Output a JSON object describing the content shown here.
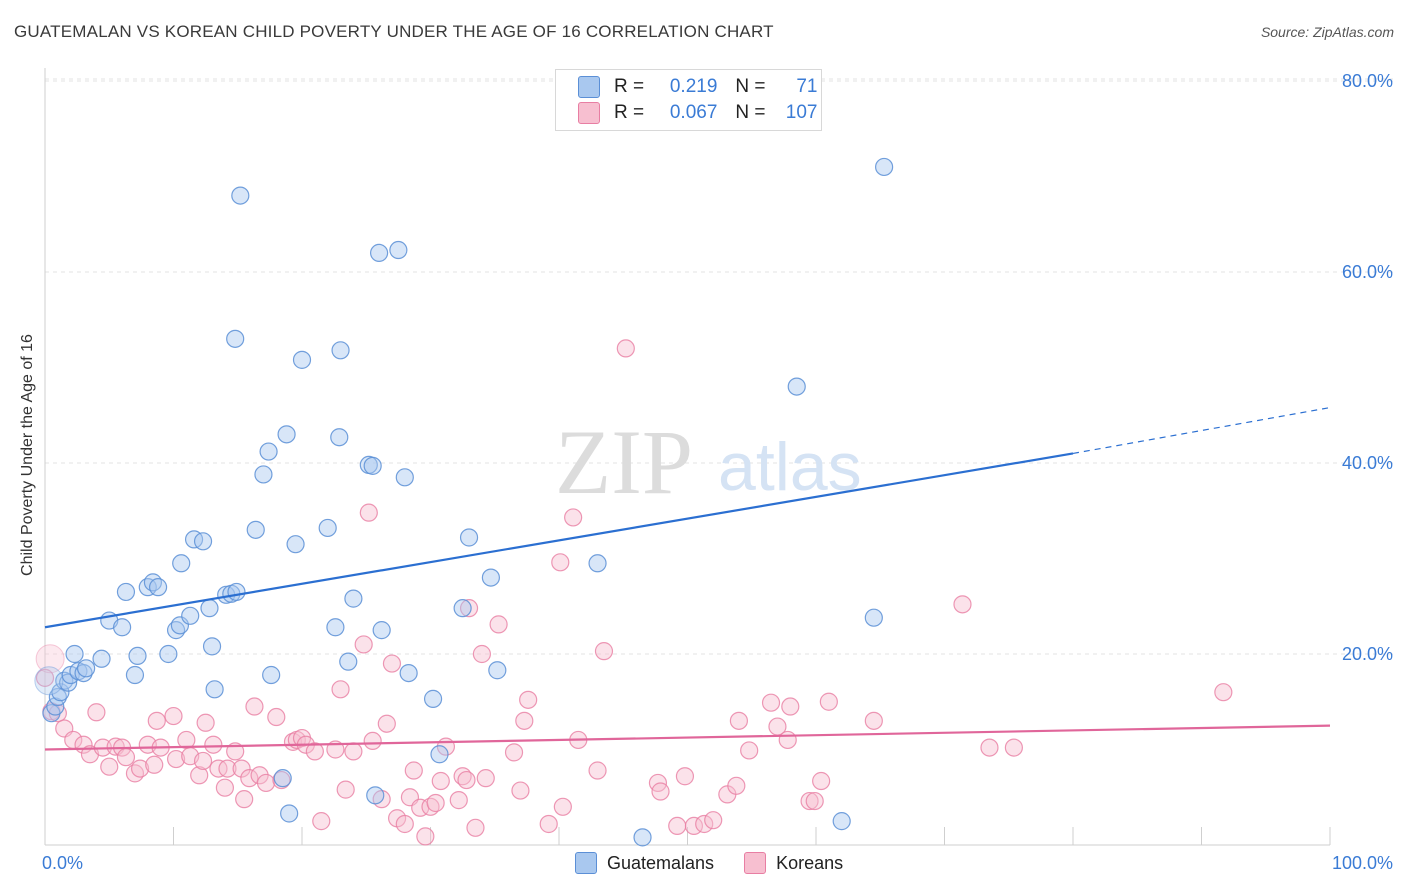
{
  "title": "GUATEMALAN VS KOREAN CHILD POVERTY UNDER THE AGE OF 16 CORRELATION CHART",
  "source": "Source: ZipAtlas.com",
  "watermark": {
    "zip": "ZIP",
    "atlas": "atlas"
  },
  "legend": {
    "r_label": "R =",
    "n_label": "N =",
    "series": [
      {
        "name": "Guatemalans",
        "r": "0.219",
        "n": "71",
        "fill": "#a9c8ef",
        "stroke": "#5b8fd6"
      },
      {
        "name": "Koreans",
        "r": "0.067",
        "n": "107",
        "fill": "#f7bfd0",
        "stroke": "#e87ea3"
      }
    ]
  },
  "chart_data": {
    "type": "scatter",
    "title": "GUATEMALAN VS KOREAN CHILD POVERTY UNDER THE AGE OF 16 CORRELATION CHART",
    "xlabel": "",
    "ylabel": "Child Poverty Under the Age of 16",
    "xlim": [
      0,
      100
    ],
    "ylim": [
      0,
      80
    ],
    "x_tick_labels": [
      "0.0%",
      "100.0%"
    ],
    "y_ticks": [
      20,
      40,
      60,
      80
    ],
    "y_tick_labels": [
      "20.0%",
      "40.0%",
      "60.0%",
      "80.0%"
    ],
    "grid": true,
    "series": [
      {
        "name": "Guatemalans",
        "color": "#5b8fd6",
        "fill": "#a9c8ef",
        "trend": {
          "x0": 0,
          "y0": 22.8,
          "x1": 80,
          "y1": 41.0,
          "dash_to_x": 100,
          "dash_to_y": 45.8,
          "color": "#2b6fd1"
        },
        "points": [
          [
            0.5,
            13.8
          ],
          [
            0.8,
            14.5
          ],
          [
            1.0,
            15.5
          ],
          [
            1.2,
            16.0
          ],
          [
            1.5,
            17.2
          ],
          [
            1.8,
            17.0
          ],
          [
            2.0,
            17.8
          ],
          [
            2.3,
            20.0
          ],
          [
            2.6,
            18.2
          ],
          [
            3.0,
            18.0
          ],
          [
            3.2,
            18.5
          ],
          [
            4.4,
            19.5
          ],
          [
            5.0,
            23.5
          ],
          [
            6.0,
            22.8
          ],
          [
            6.3,
            26.5
          ],
          [
            7.0,
            17.8
          ],
          [
            7.2,
            19.8
          ],
          [
            8.0,
            27.0
          ],
          [
            8.4,
            27.5
          ],
          [
            8.8,
            27.0
          ],
          [
            9.6,
            20.0
          ],
          [
            10.2,
            22.5
          ],
          [
            10.5,
            23.0
          ],
          [
            10.6,
            29.5
          ],
          [
            11.3,
            24.0
          ],
          [
            11.6,
            32.0
          ],
          [
            12.3,
            31.8
          ],
          [
            12.8,
            24.8
          ],
          [
            13.0,
            20.8
          ],
          [
            13.2,
            16.3
          ],
          [
            14.1,
            26.2
          ],
          [
            14.5,
            26.3
          ],
          [
            14.9,
            26.5
          ],
          [
            14.8,
            53.0
          ],
          [
            15.2,
            68.0
          ],
          [
            16.4,
            33.0
          ],
          [
            17.0,
            38.8
          ],
          [
            17.4,
            41.2
          ],
          [
            17.6,
            17.8
          ],
          [
            18.5,
            7.0
          ],
          [
            18.8,
            43.0
          ],
          [
            19.0,
            3.3
          ],
          [
            19.5,
            31.5
          ],
          [
            20.0,
            50.8
          ],
          [
            22.0,
            33.2
          ],
          [
            22.6,
            22.8
          ],
          [
            22.9,
            42.7
          ],
          [
            23.0,
            51.8
          ],
          [
            23.6,
            19.2
          ],
          [
            24.0,
            25.8
          ],
          [
            25.2,
            39.8
          ],
          [
            25.5,
            39.7
          ],
          [
            25.7,
            5.2
          ],
          [
            26.0,
            62.0
          ],
          [
            26.2,
            22.5
          ],
          [
            27.5,
            62.3
          ],
          [
            28.0,
            38.5
          ],
          [
            28.3,
            18.0
          ],
          [
            30.2,
            15.3
          ],
          [
            30.7,
            9.5
          ],
          [
            32.5,
            24.8
          ],
          [
            33.0,
            32.2
          ],
          [
            34.7,
            28.0
          ],
          [
            35.2,
            18.3
          ],
          [
            43.0,
            29.5
          ],
          [
            46.5,
            0.8
          ],
          [
            58.5,
            48.0
          ],
          [
            62.0,
            2.5
          ],
          [
            64.5,
            23.8
          ],
          [
            65.3,
            71.0
          ]
        ]
      },
      {
        "name": "Koreans",
        "color": "#e87ea3",
        "fill": "#f7bfd0",
        "trend": {
          "x0": 0,
          "y0": 10.0,
          "x1": 100,
          "y1": 12.5,
          "color": "#e0669a"
        },
        "points": [
          [
            0.0,
            17.5
          ],
          [
            0.5,
            14.0
          ],
          [
            1.0,
            13.8
          ],
          [
            1.5,
            12.2
          ],
          [
            2.2,
            11.0
          ],
          [
            3.0,
            10.5
          ],
          [
            3.5,
            9.5
          ],
          [
            4.0,
            13.9
          ],
          [
            4.5,
            10.2
          ],
          [
            5.0,
            8.2
          ],
          [
            5.5,
            10.3
          ],
          [
            6.0,
            10.2
          ],
          [
            6.3,
            9.2
          ],
          [
            7.0,
            7.5
          ],
          [
            7.4,
            8.0
          ],
          [
            8.0,
            10.5
          ],
          [
            8.5,
            8.4
          ],
          [
            8.7,
            13.0
          ],
          [
            9.0,
            10.2
          ],
          [
            10.0,
            13.5
          ],
          [
            10.2,
            9.0
          ],
          [
            11.0,
            11.0
          ],
          [
            11.3,
            9.3
          ],
          [
            12.0,
            7.3
          ],
          [
            12.3,
            8.8
          ],
          [
            12.5,
            12.8
          ],
          [
            13.1,
            10.5
          ],
          [
            13.5,
            8.0
          ],
          [
            14.0,
            6.0
          ],
          [
            14.2,
            8.0
          ],
          [
            14.8,
            9.8
          ],
          [
            15.3,
            8.0
          ],
          [
            15.5,
            4.8
          ],
          [
            15.9,
            7.0
          ],
          [
            16.3,
            14.5
          ],
          [
            16.7,
            7.3
          ],
          [
            17.2,
            6.5
          ],
          [
            18.0,
            13.4
          ],
          [
            18.4,
            6.8
          ],
          [
            19.3,
            10.8
          ],
          [
            19.6,
            11.0
          ],
          [
            20.0,
            11.2
          ],
          [
            20.3,
            10.5
          ],
          [
            21.0,
            9.8
          ],
          [
            21.5,
            2.5
          ],
          [
            22.6,
            10.0
          ],
          [
            23.0,
            16.3
          ],
          [
            23.4,
            5.8
          ],
          [
            24.0,
            9.8
          ],
          [
            24.8,
            21.0
          ],
          [
            25.2,
            34.8
          ],
          [
            25.5,
            10.9
          ],
          [
            26.2,
            4.8
          ],
          [
            26.6,
            12.7
          ],
          [
            27.0,
            19.0
          ],
          [
            27.4,
            2.8
          ],
          [
            28.0,
            2.2
          ],
          [
            28.4,
            5.0
          ],
          [
            28.7,
            7.8
          ],
          [
            29.2,
            3.9
          ],
          [
            29.6,
            0.9
          ],
          [
            30.0,
            4.0
          ],
          [
            30.4,
            4.4
          ],
          [
            30.8,
            6.7
          ],
          [
            31.2,
            10.3
          ],
          [
            32.2,
            4.7
          ],
          [
            32.5,
            7.2
          ],
          [
            32.8,
            6.8
          ],
          [
            33.0,
            24.8
          ],
          [
            33.5,
            1.8
          ],
          [
            34.0,
            20.0
          ],
          [
            34.3,
            7.0
          ],
          [
            35.3,
            23.1
          ],
          [
            36.5,
            9.7
          ],
          [
            37.0,
            5.7
          ],
          [
            37.3,
            13.0
          ],
          [
            37.6,
            15.2
          ],
          [
            39.2,
            2.2
          ],
          [
            40.1,
            29.6
          ],
          [
            40.3,
            4.0
          ],
          [
            41.1,
            34.3
          ],
          [
            41.5,
            11.0
          ],
          [
            43.0,
            7.8
          ],
          [
            43.5,
            20.3
          ],
          [
            45.2,
            52.0
          ],
          [
            47.7,
            6.5
          ],
          [
            47.9,
            5.6
          ],
          [
            49.2,
            2.0
          ],
          [
            49.8,
            7.2
          ],
          [
            50.5,
            2.0
          ],
          [
            51.3,
            2.2
          ],
          [
            52.0,
            2.6
          ],
          [
            53.1,
            5.3
          ],
          [
            53.8,
            6.2
          ],
          [
            54.0,
            13.0
          ],
          [
            54.8,
            9.9
          ],
          [
            56.5,
            14.9
          ],
          [
            57.0,
            12.4
          ],
          [
            57.8,
            11.0
          ],
          [
            58.0,
            14.5
          ],
          [
            59.5,
            4.6
          ],
          [
            59.9,
            4.6
          ],
          [
            60.4,
            6.7
          ],
          [
            61.0,
            15.0
          ],
          [
            64.5,
            13.0
          ],
          [
            71.4,
            25.2
          ],
          [
            73.5,
            10.2
          ],
          [
            75.4,
            10.2
          ],
          [
            91.7,
            16.0
          ]
        ]
      }
    ]
  }
}
